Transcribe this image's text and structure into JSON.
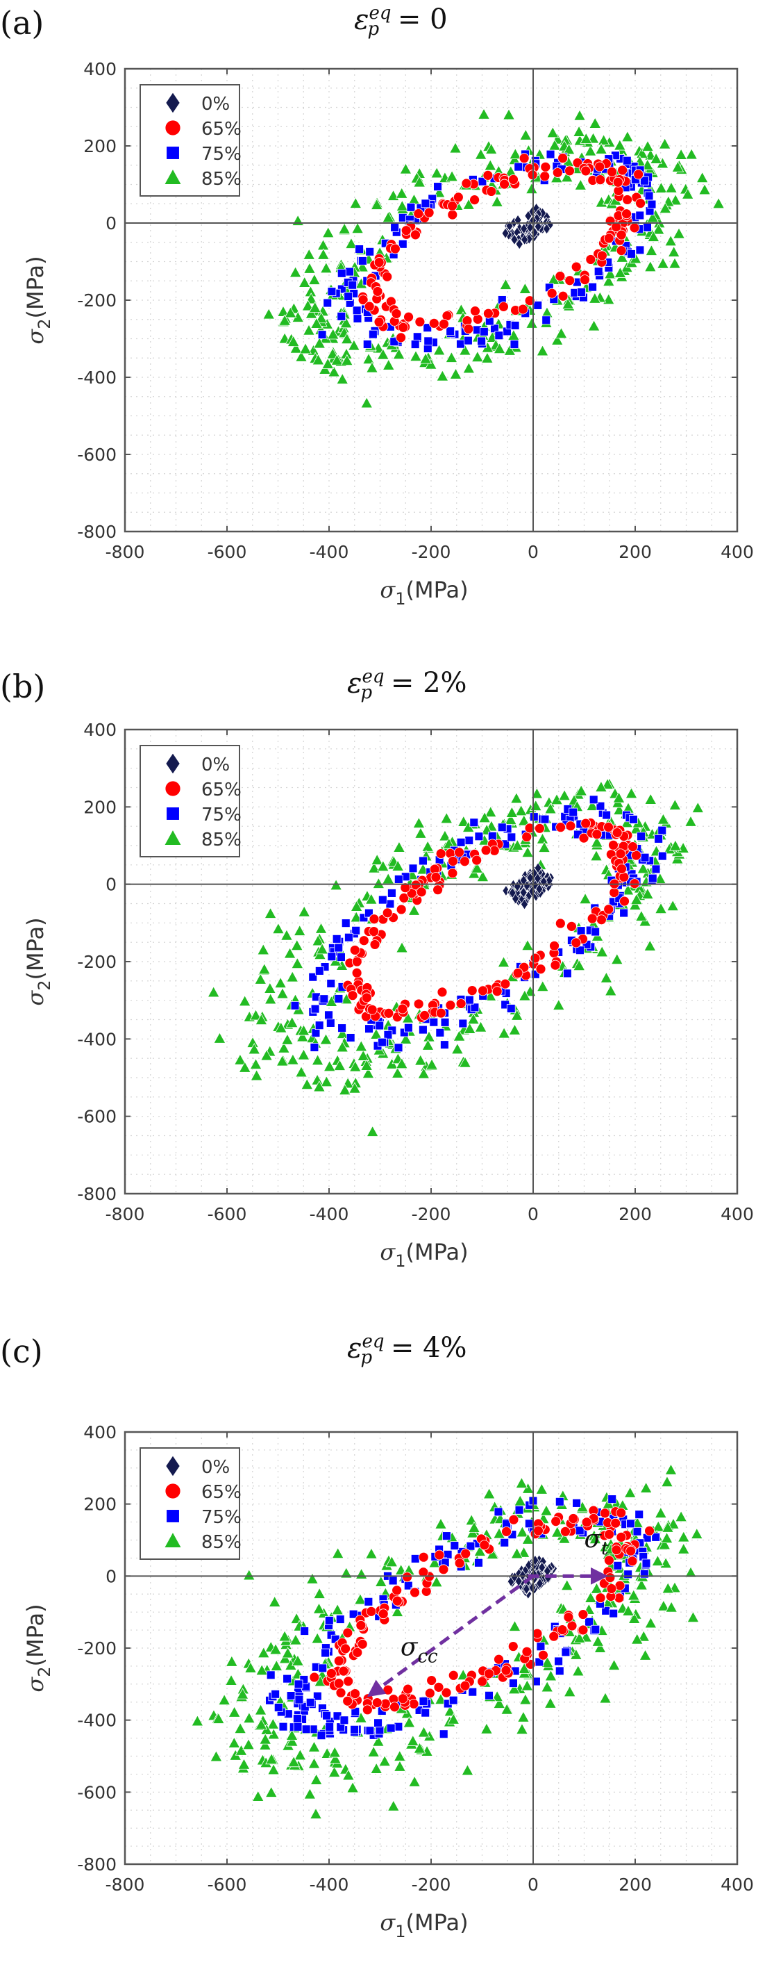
{
  "figure": {
    "panels": [
      {
        "label": "(a)",
        "title_symbol": "ε",
        "title_sup": "eq",
        "title_sub": "p",
        "title_rhs": "= 0"
      },
      {
        "label": "(b)",
        "title_symbol": "ε",
        "title_sup": "eq",
        "title_sub": "p",
        "title_rhs": "= 2%"
      },
      {
        "label": "(c)",
        "title_symbol": "ε",
        "title_sup": "eq",
        "title_sub": "p",
        "title_rhs": "= 4%"
      }
    ]
  },
  "chart_data": [
    {
      "type": "scatter",
      "title": "ε_p^eq = 0",
      "xlabel": "σ1(MPa)",
      "ylabel": "σ2(MPa)",
      "xlim": [
        -800,
        400
      ],
      "ylim": [
        -800,
        400
      ],
      "xticks": [
        "-800",
        "-600",
        "-400",
        "-200",
        "0",
        "200",
        "400"
      ],
      "yticks": [
        "400",
        "200",
        "0",
        "-200",
        "-400",
        "-600",
        "-800"
      ],
      "grid": true,
      "legend_position": "top-left",
      "series": [
        {
          "name": "0%",
          "marker": "diamond",
          "color": "#141a4f",
          "center": [
            -10,
            -10
          ],
          "a": 90,
          "b": 28,
          "angle_deg": 40,
          "thickness": 0,
          "n": 70
        },
        {
          "name": "65%",
          "marker": "circle",
          "color": "#ff0000",
          "center": [
            -60,
            -60
          ],
          "a": 290,
          "b": 150,
          "angle_deg": 35,
          "thickness": 18,
          "n": 150
        },
        {
          "name": "75%",
          "marker": "square",
          "color": "#0000ff",
          "center": [
            -70,
            -70
          ],
          "a": 330,
          "b": 175,
          "angle_deg": 35,
          "thickness": 22,
          "n": 150
        },
        {
          "name": "85%",
          "marker": "triangle",
          "color": "#22bb22",
          "center": [
            -90,
            -80
          ],
          "a": 390,
          "b": 205,
          "angle_deg": 35,
          "thickness": 55,
          "n": 330
        }
      ]
    },
    {
      "type": "scatter",
      "title": "ε_p^eq = 2%",
      "xlabel": "σ1(MPa)",
      "ylabel": "σ2(MPa)",
      "xlim": [
        -800,
        400
      ],
      "ylim": [
        -800,
        400
      ],
      "xticks": [
        "-800",
        "-600",
        "-400",
        "-200",
        "0",
        "200",
        "400"
      ],
      "yticks": [
        "400",
        "200",
        "0",
        "-200",
        "-400",
        "-600",
        "-800"
      ],
      "grid": true,
      "legend_position": "top-left",
      "series": [
        {
          "name": "0%",
          "marker": "diamond",
          "color": "#141a4f",
          "center": [
            -5,
            -5
          ],
          "a": 90,
          "b": 28,
          "angle_deg": 45,
          "thickness": 0,
          "n": 70
        },
        {
          "name": "65%",
          "marker": "circle",
          "color": "#ff0000",
          "center": [
            -90,
            -90
          ],
          "a": 330,
          "b": 150,
          "angle_deg": 40,
          "thickness": 18,
          "n": 160
        },
        {
          "name": "75%",
          "marker": "square",
          "color": "#0000ff",
          "center": [
            -110,
            -110
          ],
          "a": 380,
          "b": 175,
          "angle_deg": 40,
          "thickness": 28,
          "n": 170
        },
        {
          "name": "85%",
          "marker": "triangle",
          "color": "#22bb22",
          "center": [
            -130,
            -130
          ],
          "a": 440,
          "b": 200,
          "angle_deg": 40,
          "thickness": 60,
          "n": 340
        }
      ]
    },
    {
      "type": "scatter",
      "title": "ε_p^eq = 4%",
      "xlabel": "σ1(MPa)",
      "ylabel": "σ2(MPa)",
      "xlim": [
        -800,
        400
      ],
      "ylim": [
        -800,
        400
      ],
      "xticks": [
        "-800",
        "-600",
        "-400",
        "-200",
        "0",
        "200",
        "400"
      ],
      "yticks": [
        "400",
        "200",
        "0",
        "-200",
        "-400",
        "-600",
        "-800"
      ],
      "grid": true,
      "legend_position": "top-left",
      "series": [
        {
          "name": "0%",
          "marker": "diamond",
          "color": "#141a4f",
          "center": [
            0,
            0
          ],
          "a": 90,
          "b": 28,
          "angle_deg": 45,
          "thickness": 0,
          "n": 70
        },
        {
          "name": "65%",
          "marker": "circle",
          "color": "#ff0000",
          "center": [
            -100,
            -100
          ],
          "a": 350,
          "b": 150,
          "angle_deg": 40,
          "thickness": 20,
          "n": 170
        },
        {
          "name": "75%",
          "marker": "square",
          "color": "#0000ff",
          "center": [
            -130,
            -130
          ],
          "a": 410,
          "b": 175,
          "angle_deg": 40,
          "thickness": 32,
          "n": 180
        },
        {
          "name": "85%",
          "marker": "triangle",
          "color": "#22bb22",
          "center": [
            -160,
            -160
          ],
          "a": 470,
          "b": 205,
          "angle_deg": 40,
          "thickness": 65,
          "n": 350
        }
      ],
      "annotations": [
        {
          "text": "σ",
          "sub": "t",
          "arrow_from": [
            -10,
            0
          ],
          "arrow_to": [
            140,
            0
          ],
          "label_at": [
            100,
            80
          ],
          "color": "#7030a0"
        },
        {
          "text": "σ",
          "sub": "cc",
          "arrow_from": [
            0,
            0
          ],
          "arrow_to": [
            -320,
            -330
          ],
          "label_at": [
            -260,
            -220
          ],
          "color": "#7030a0"
        }
      ]
    }
  ]
}
